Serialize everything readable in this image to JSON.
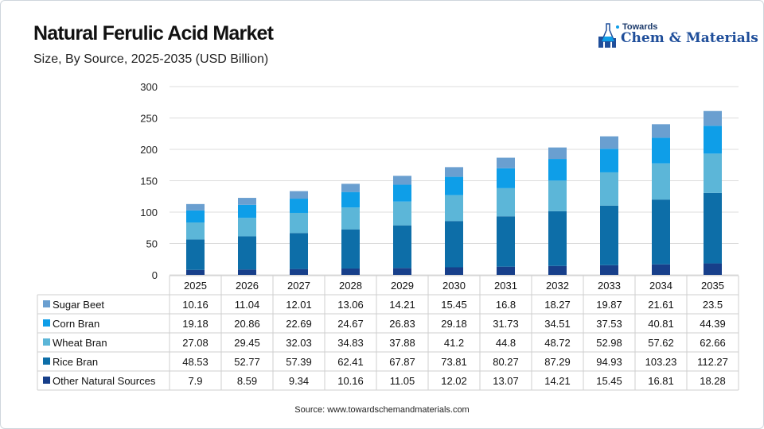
{
  "header": {
    "title": "Natural Ferulic Acid Market",
    "subtitle": "Size, By Source, 2025-2035 (USD Billion)",
    "logo_top": "Towards",
    "logo_main": "Chem & Materials"
  },
  "footer": {
    "source": "Source: www.towardschemandmaterials.com"
  },
  "chart_data": {
    "type": "bar",
    "stacked": true,
    "title": "Natural Ferulic Acid Market",
    "subtitle": "Size, By Source, 2025-2035 (USD Billion)",
    "categories": [
      "2025",
      "2026",
      "2027",
      "2028",
      "2029",
      "2030",
      "2031",
      "2032",
      "2033",
      "2034",
      "2035"
    ],
    "ylim": [
      0,
      300
    ],
    "yticks": [
      0,
      50,
      100,
      150,
      200,
      250,
      300
    ],
    "grid": true,
    "legend": "data table below chart",
    "series": [
      {
        "name": "Sugar Beet",
        "color": "#6a9fd0",
        "values": [
          10.16,
          11.04,
          12.01,
          13.06,
          14.21,
          15.45,
          16.8,
          18.27,
          19.87,
          21.61,
          23.5
        ]
      },
      {
        "name": "Corn Bran",
        "color": "#0e9ee8",
        "values": [
          19.18,
          20.86,
          22.69,
          24.67,
          26.83,
          29.18,
          31.73,
          34.51,
          37.53,
          40.81,
          44.39
        ]
      },
      {
        "name": "Wheat Bran",
        "color": "#5cb6d8",
        "values": [
          27.08,
          29.45,
          32.03,
          34.83,
          37.88,
          41.2,
          44.8,
          48.72,
          52.98,
          57.62,
          62.66
        ]
      },
      {
        "name": "Rice Bran",
        "color": "#0d6ea8",
        "values": [
          48.53,
          52.77,
          57.39,
          62.41,
          67.87,
          73.81,
          80.27,
          87.29,
          94.93,
          103.23,
          112.27
        ]
      },
      {
        "name": "Other Natural Sources",
        "color": "#173f8a",
        "values": [
          7.9,
          8.59,
          9.34,
          10.16,
          11.05,
          12.02,
          13.07,
          14.21,
          15.45,
          16.81,
          18.28
        ]
      }
    ]
  }
}
